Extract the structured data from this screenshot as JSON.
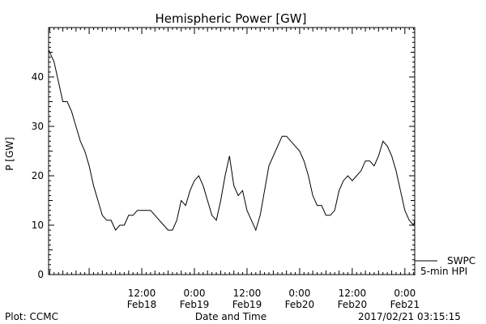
{
  "chart_data": {
    "type": "line",
    "title": "Hemispheric Power [GW]",
    "xlabel": "Date and Time",
    "ylabel": "P [GW]",
    "ylim": [
      0,
      50
    ],
    "xlim": [
      "2017-02-17T14:45",
      "2017-02-21T02:15"
    ],
    "y_ticks": [
      0,
      10,
      20,
      30,
      40
    ],
    "x_ticks": [
      {
        "at": "2017-02-18T12:00",
        "time": "12:00",
        "date": "Feb18"
      },
      {
        "at": "2017-02-19T00:00",
        "time": "0:00",
        "date": "Feb19"
      },
      {
        "at": "2017-02-19T12:00",
        "time": "12:00",
        "date": "Feb19"
      },
      {
        "at": "2017-02-20T00:00",
        "time": "0:00",
        "date": "Feb20"
      },
      {
        "at": "2017-02-20T12:00",
        "time": "12:00",
        "date": "Feb20"
      },
      {
        "at": "2017-02-21T00:00",
        "time": "0:00",
        "date": "Feb21"
      }
    ],
    "grid": false,
    "legend_position": "bottom-right outside plot",
    "series": [
      {
        "name": "SWPC",
        "color": "#000000",
        "points": [
          [
            "2017-02-17T14:45",
            45.5
          ],
          [
            "2017-02-17T16:00",
            43
          ],
          [
            "2017-02-17T17:00",
            39
          ],
          [
            "2017-02-17T18:00",
            35
          ],
          [
            "2017-02-17T19:00",
            35
          ],
          [
            "2017-02-17T20:00",
            33
          ],
          [
            "2017-02-17T21:00",
            30
          ],
          [
            "2017-02-17T22:00",
            27
          ],
          [
            "2017-02-17T23:00",
            25
          ],
          [
            "2017-02-18T00:00",
            22
          ],
          [
            "2017-02-18T01:00",
            18
          ],
          [
            "2017-02-18T02:00",
            15
          ],
          [
            "2017-02-18T03:00",
            12
          ],
          [
            "2017-02-18T04:00",
            11
          ],
          [
            "2017-02-18T05:00",
            11
          ],
          [
            "2017-02-18T06:00",
            9
          ],
          [
            "2017-02-18T07:00",
            10
          ],
          [
            "2017-02-18T08:00",
            10
          ],
          [
            "2017-02-18T09:00",
            12
          ],
          [
            "2017-02-18T10:00",
            12
          ],
          [
            "2017-02-18T11:00",
            13
          ],
          [
            "2017-02-18T12:00",
            13
          ],
          [
            "2017-02-18T13:00",
            13
          ],
          [
            "2017-02-18T14:00",
            13
          ],
          [
            "2017-02-18T15:00",
            12
          ],
          [
            "2017-02-18T16:00",
            11
          ],
          [
            "2017-02-18T17:00",
            10
          ],
          [
            "2017-02-18T18:00",
            9
          ],
          [
            "2017-02-18T19:00",
            9
          ],
          [
            "2017-02-18T20:00",
            11
          ],
          [
            "2017-02-18T21:00",
            15
          ],
          [
            "2017-02-18T22:00",
            14
          ],
          [
            "2017-02-18T23:00",
            17
          ],
          [
            "2017-02-19T00:00",
            19
          ],
          [
            "2017-02-19T01:00",
            20
          ],
          [
            "2017-02-19T02:00",
            18
          ],
          [
            "2017-02-19T03:00",
            15
          ],
          [
            "2017-02-19T04:00",
            12
          ],
          [
            "2017-02-19T05:00",
            11
          ],
          [
            "2017-02-19T06:00",
            15
          ],
          [
            "2017-02-19T07:00",
            20
          ],
          [
            "2017-02-19T08:00",
            24
          ],
          [
            "2017-02-19T09:00",
            18
          ],
          [
            "2017-02-19T10:00",
            16
          ],
          [
            "2017-02-19T11:00",
            17
          ],
          [
            "2017-02-19T12:00",
            13
          ],
          [
            "2017-02-19T13:00",
            11
          ],
          [
            "2017-02-19T14:00",
            9
          ],
          [
            "2017-02-19T15:00",
            12
          ],
          [
            "2017-02-19T16:00",
            17
          ],
          [
            "2017-02-19T17:00",
            22
          ],
          [
            "2017-02-19T18:00",
            24
          ],
          [
            "2017-02-19T19:00",
            26
          ],
          [
            "2017-02-19T20:00",
            28
          ],
          [
            "2017-02-19T21:00",
            28
          ],
          [
            "2017-02-19T22:00",
            27
          ],
          [
            "2017-02-19T23:00",
            26
          ],
          [
            "2017-02-20T00:00",
            25
          ],
          [
            "2017-02-20T01:00",
            23
          ],
          [
            "2017-02-20T02:00",
            20
          ],
          [
            "2017-02-20T03:00",
            16
          ],
          [
            "2017-02-20T04:00",
            14
          ],
          [
            "2017-02-20T05:00",
            14
          ],
          [
            "2017-02-20T06:00",
            12
          ],
          [
            "2017-02-20T07:00",
            12
          ],
          [
            "2017-02-20T08:00",
            13
          ],
          [
            "2017-02-20T09:00",
            17
          ],
          [
            "2017-02-20T10:00",
            19
          ],
          [
            "2017-02-20T11:00",
            20
          ],
          [
            "2017-02-20T12:00",
            19
          ],
          [
            "2017-02-20T13:00",
            20
          ],
          [
            "2017-02-20T14:00",
            21
          ],
          [
            "2017-02-20T15:00",
            23
          ],
          [
            "2017-02-20T16:00",
            23
          ],
          [
            "2017-02-20T17:00",
            22
          ],
          [
            "2017-02-20T18:00",
            24
          ],
          [
            "2017-02-20T19:00",
            27
          ],
          [
            "2017-02-20T20:00",
            26
          ],
          [
            "2017-02-20T21:00",
            24
          ],
          [
            "2017-02-20T22:00",
            21
          ],
          [
            "2017-02-20T23:00",
            17
          ]
        ]
      },
      {
        "name": "5-min HPI",
        "color": "#000000",
        "points": [
          [
            "2017-02-21T00:00",
            13
          ],
          [
            "2017-02-21T01:00",
            11
          ],
          [
            "2017-02-21T02:15",
            11
          ]
        ]
      }
    ]
  },
  "hpi_points": [
    [
      "2017-02-20T23:00",
      17
    ],
    [
      "2017-02-21T00:00",
      13
    ],
    [
      "2017-02-21T01:00",
      11
    ],
    [
      "2017-02-21T02:00",
      10
    ],
    [
      "2017-02-21T02:15",
      11
    ]
  ],
  "footer": {
    "plot_credit": "Plot: CCMC",
    "timestamp": "2017/02/21 03:15:15"
  }
}
